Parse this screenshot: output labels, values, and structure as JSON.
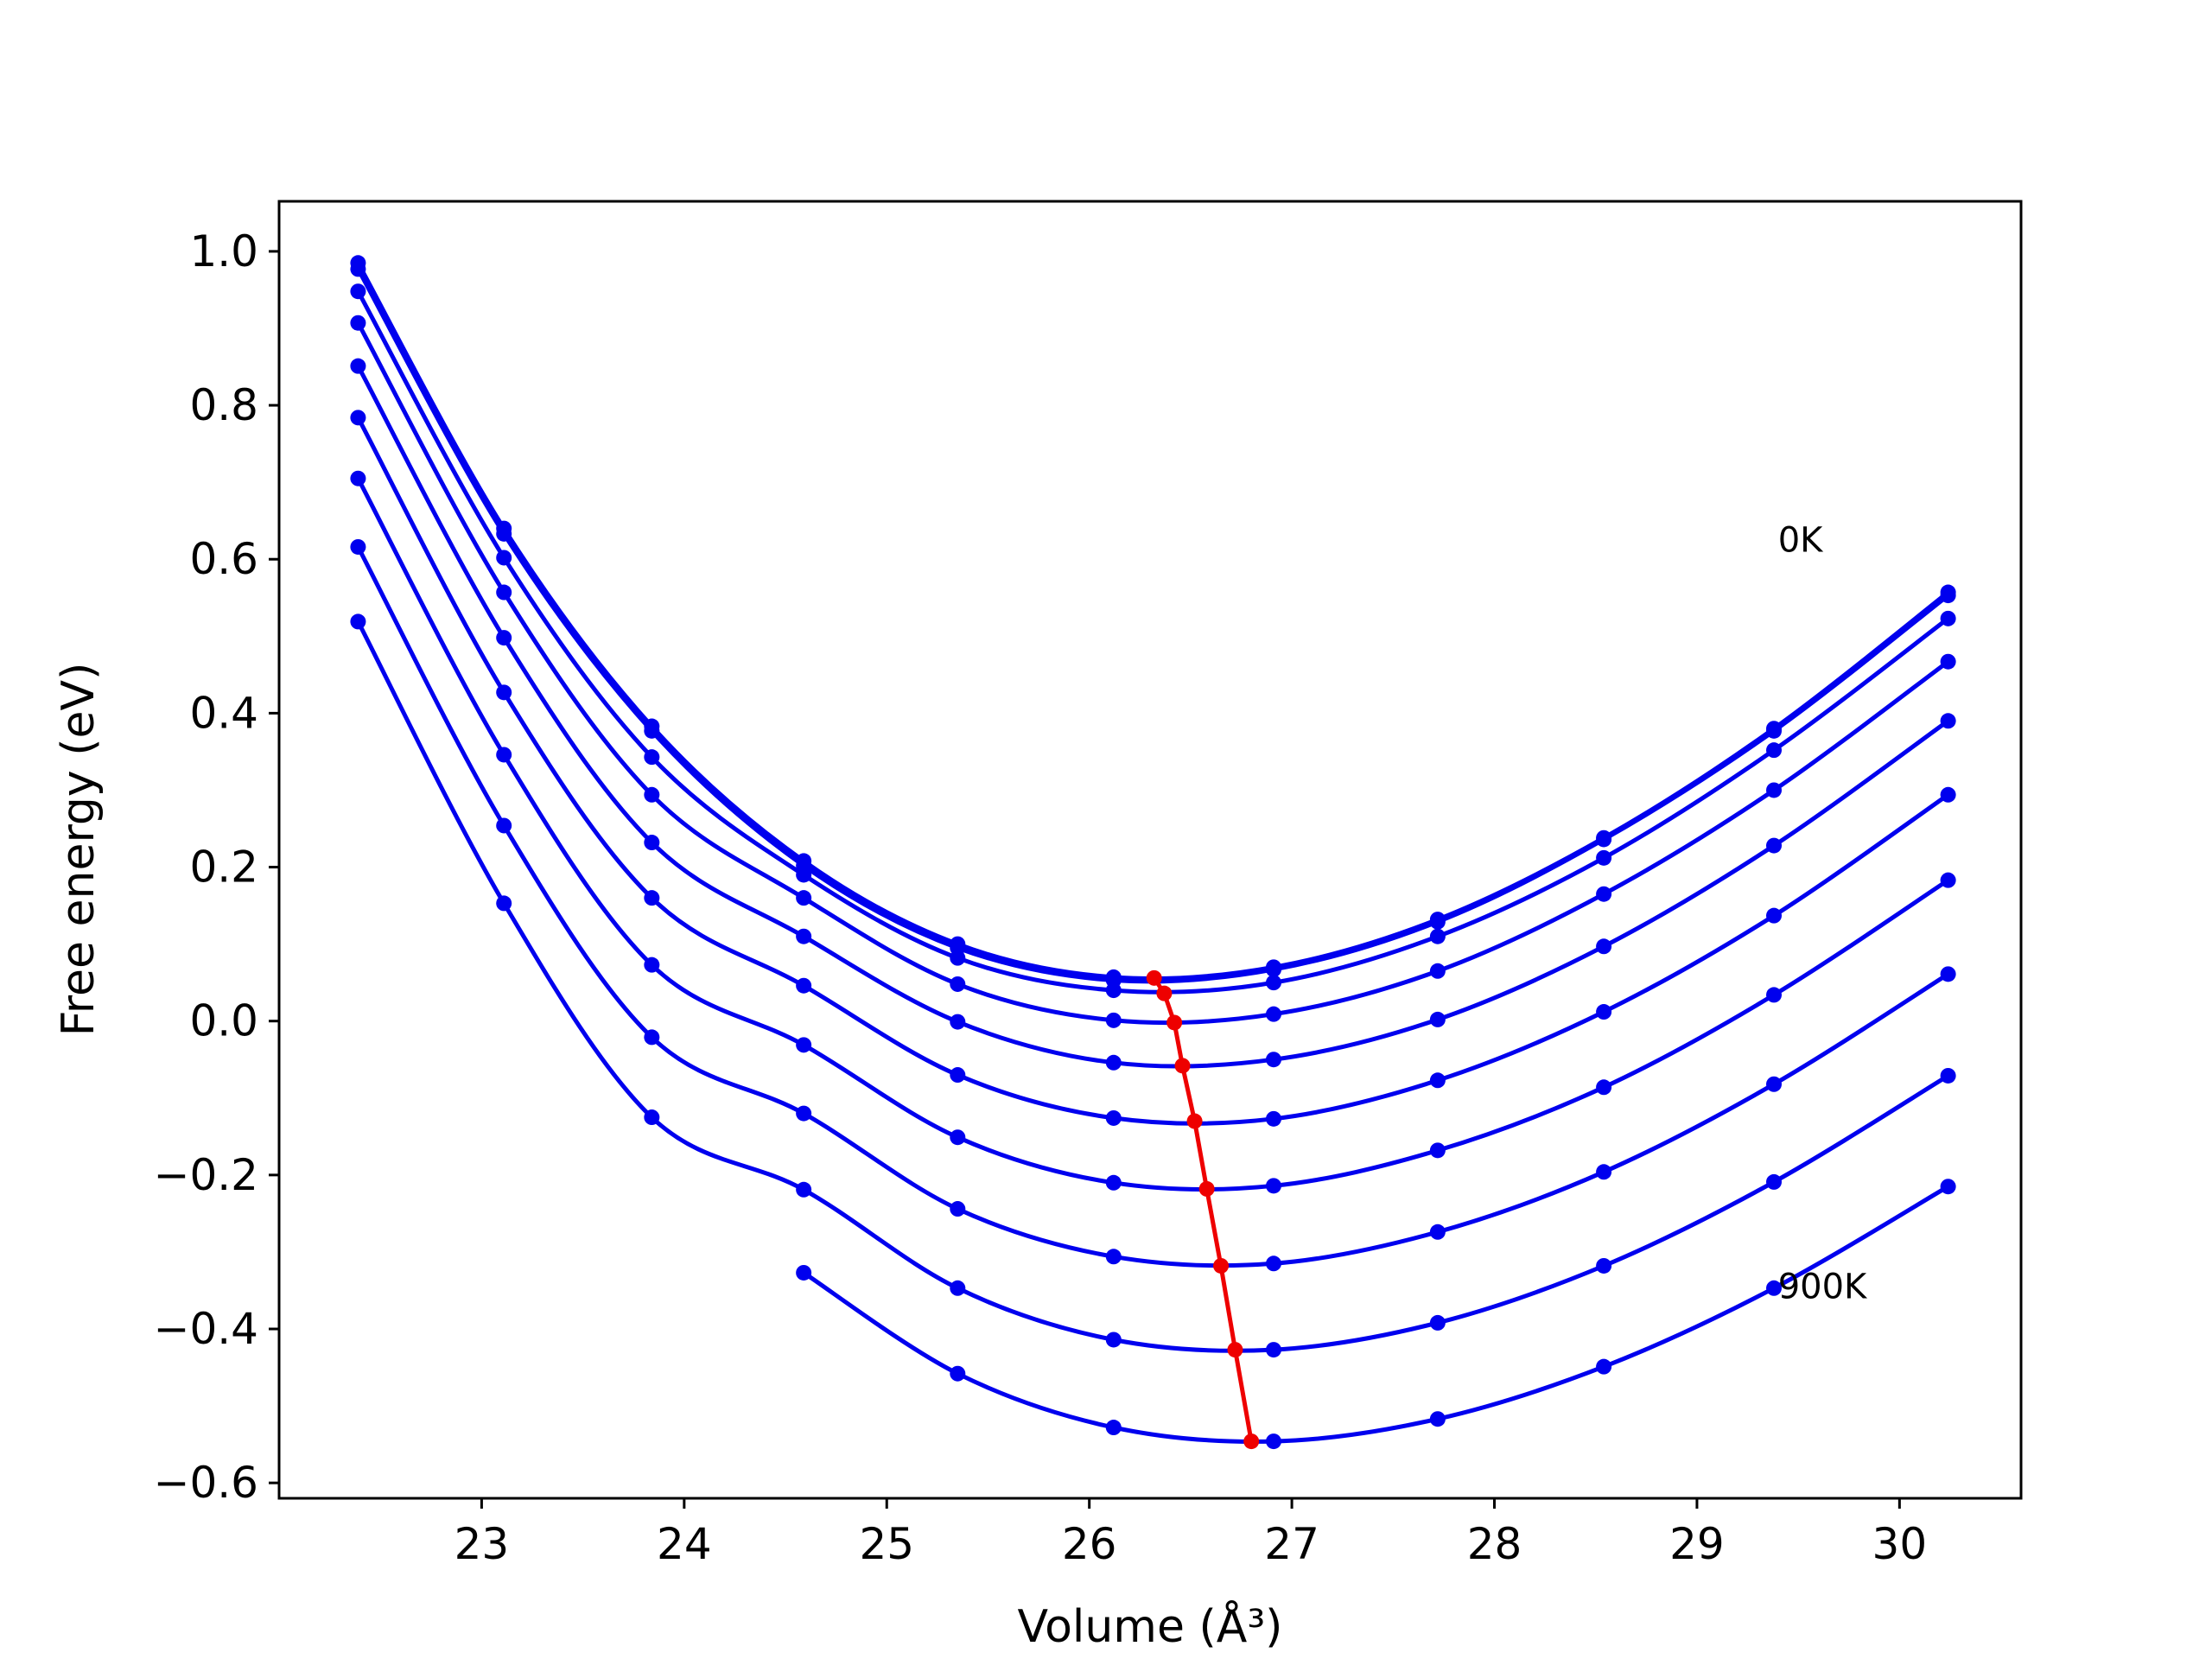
{
  "chart_data": {
    "type": "line",
    "xlabel": "Volume (Å³)",
    "ylabel": "Free energy (eV)",
    "xlim": [
      22.0,
      30.6
    ],
    "ylim": [
      -0.62,
      1.065
    ],
    "xticks": [
      "23",
      "24",
      "25",
      "26",
      "27",
      "28",
      "29",
      "30"
    ],
    "yticks": [
      "−0.6",
      "−0.4",
      "−0.2",
      "0.0",
      "0.2",
      "0.4",
      "0.6",
      "0.8",
      "1.0"
    ],
    "grid": false,
    "x": [
      22.39,
      23.11,
      23.84,
      24.59,
      25.35,
      26.12,
      26.91,
      27.72,
      28.54,
      29.38,
      30.24
    ],
    "curve_color": "#0000ee",
    "min_color": "#ee0000",
    "annotations": [
      {
        "text": "0K",
        "x": 29.4,
        "y": 0.61
      },
      {
        "text": "900K",
        "x": 29.4,
        "y": -0.36
      }
    ],
    "series": [
      {
        "values": [
          0.985,
          0.64,
          0.383,
          0.208,
          0.1,
          0.057,
          0.07,
          0.132,
          0.238,
          0.38,
          0.557
        ]
      },
      {
        "values": [
          0.977,
          0.633,
          0.377,
          0.202,
          0.095,
          0.053,
          0.067,
          0.129,
          0.236,
          0.377,
          0.553
        ]
      },
      {
        "values": [
          0.948,
          0.602,
          0.343,
          0.19,
          0.082,
          0.04,
          0.05,
          0.11,
          0.212,
          0.352,
          0.523
        ]
      },
      {
        "values": [
          0.907,
          0.557,
          0.294,
          0.16,
          0.048,
          0.001,
          0.009,
          0.065,
          0.165,
          0.3,
          0.467
        ]
      },
      {
        "values": [
          0.851,
          0.498,
          0.232,
          0.11,
          -0.001,
          -0.054,
          -0.05,
          0.002,
          0.097,
          0.228,
          0.39
        ]
      },
      {
        "values": [
          0.784,
          0.427,
          0.16,
          0.046,
          -0.07,
          -0.126,
          -0.127,
          -0.077,
          0.012,
          0.137,
          0.294
        ]
      },
      {
        "values": [
          0.705,
          0.346,
          0.073,
          -0.031,
          -0.151,
          -0.21,
          -0.214,
          -0.168,
          -0.086,
          0.034,
          0.183
        ]
      },
      {
        "values": [
          0.616,
          0.254,
          -0.021,
          -0.12,
          -0.244,
          -0.306,
          -0.315,
          -0.274,
          -0.196,
          -0.082,
          0.061
        ]
      },
      {
        "values": [
          0.519,
          0.153,
          -0.125,
          -0.219,
          -0.347,
          -0.414,
          -0.427,
          -0.392,
          -0.318,
          -0.209,
          -0.071
        ]
      },
      {
        "values": [
          null,
          null,
          null,
          -0.327,
          -0.458,
          -0.528,
          -0.546,
          -0.517,
          -0.449,
          -0.347,
          -0.215
        ]
      }
    ],
    "minima": {
      "x": [
        26.32,
        26.37,
        26.42,
        26.46,
        26.52,
        26.58,
        26.65,
        26.72,
        26.8
      ],
      "y": [
        0.056,
        0.036,
        -0.002,
        -0.058,
        -0.13,
        -0.218,
        -0.318,
        -0.427,
        -0.546
      ]
    }
  }
}
